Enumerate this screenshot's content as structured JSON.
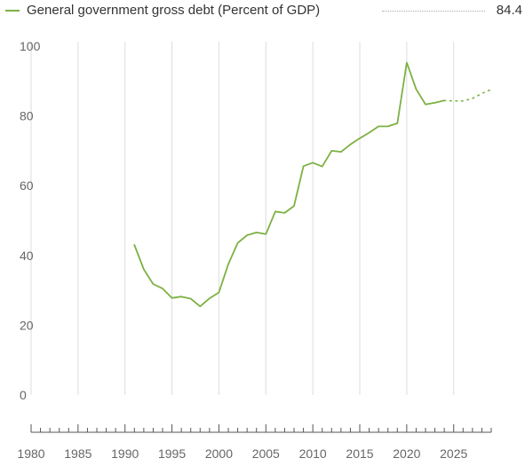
{
  "legend": {
    "name": "General government gross debt (Percent of GDP)",
    "latest_value": "84.4"
  },
  "colors": {
    "line": "#7db143",
    "grid": "#dddddd",
    "axis": "#555555"
  },
  "chart_data": {
    "type": "line",
    "title": "",
    "xlabel": "",
    "ylabel": "",
    "xlim": [
      1980,
      2029
    ],
    "ylim": [
      0,
      100
    ],
    "y_ticks": [
      0,
      20,
      40,
      60,
      80,
      100
    ],
    "x_ticks": [
      1980,
      1985,
      1990,
      1995,
      2000,
      2005,
      2010,
      2015,
      2020,
      2025
    ],
    "grid": "vertical",
    "legend_position": "top",
    "series": [
      {
        "name": "General government gross debt (Percent of GDP)",
        "x": [
          1991,
          1992,
          1993,
          1994,
          1995,
          1996,
          1997,
          1998,
          1999,
          2000,
          2001,
          2002,
          2003,
          2004,
          2005,
          2006,
          2007,
          2008,
          2009,
          2010,
          2011,
          2012,
          2013,
          2014,
          2015,
          2016,
          2017,
          2018,
          2019,
          2020,
          2021,
          2022,
          2023,
          2024
        ],
        "y": [
          43.0,
          36.0,
          31.8,
          30.5,
          27.8,
          28.2,
          27.6,
          25.4,
          27.7,
          29.4,
          37.5,
          43.6,
          45.8,
          46.6,
          46.1,
          52.6,
          52.2,
          54.2,
          65.6,
          66.6,
          65.5,
          70.0,
          69.7,
          71.8,
          73.6,
          75.2,
          77.0,
          77.0,
          77.9,
          95.3,
          87.7,
          83.3,
          83.8,
          84.4
        ]
      },
      {
        "name": "",
        "projection": true,
        "x": [
          2024,
          2025,
          2026,
          2027,
          2028,
          2029
        ],
        "y": [
          84.4,
          84.3,
          84.3,
          85.0,
          86.4,
          87.6
        ]
      }
    ]
  }
}
